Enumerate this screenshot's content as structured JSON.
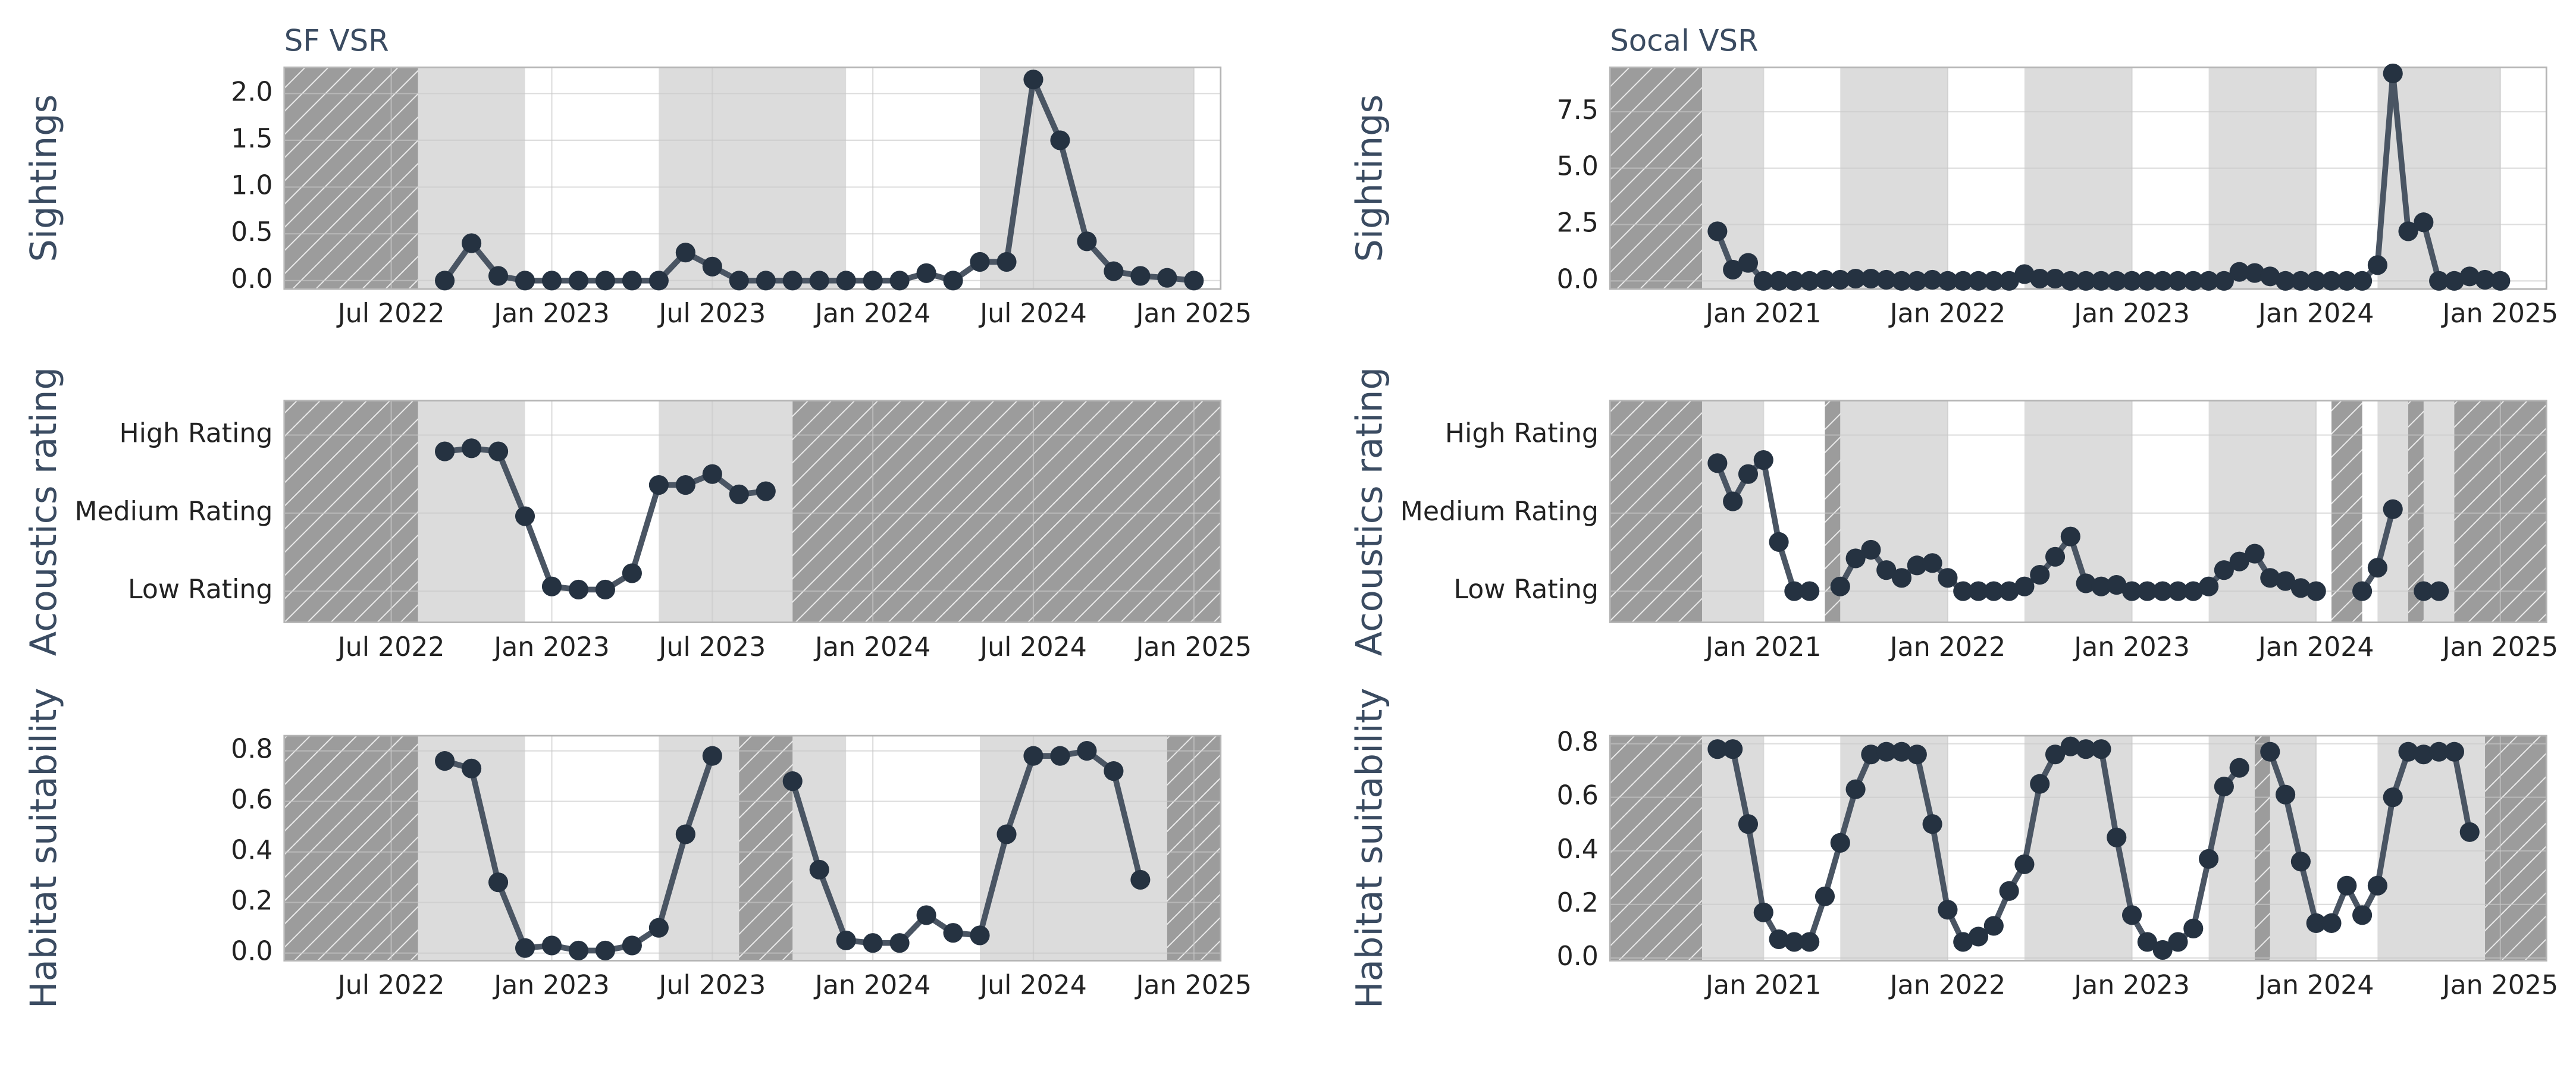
{
  "chart_data": [
    {
      "type": "line",
      "title": "SF VSR",
      "y_label": "Sightings",
      "x": [
        "2022-09",
        "2022-10",
        "2022-11",
        "2022-12",
        "2023-01",
        "2023-02",
        "2023-03",
        "2023-04",
        "2023-05",
        "2023-06",
        "2023-07",
        "2023-08",
        "2023-09",
        "2023-10",
        "2023-11",
        "2023-12",
        "2024-01",
        "2024-02",
        "2024-03",
        "2024-04",
        "2024-05",
        "2024-06",
        "2024-07",
        "2024-08",
        "2024-09",
        "2024-10",
        "2024-11",
        "2024-12",
        "2025-01"
      ],
      "values": [
        0,
        0.4,
        0.05,
        0,
        0,
        0,
        0,
        0,
        0,
        0.3,
        0.15,
        0,
        0,
        0,
        0,
        0,
        0,
        0,
        0.08,
        0,
        0.2,
        0.2,
        2.15,
        1.5,
        0.42,
        0.1,
        0.05,
        0.03,
        0
      ],
      "xlim": [
        "2022-03",
        "2025-02"
      ],
      "xticks": [
        {
          "value": "2022-07",
          "label": "Jul 2022"
        },
        {
          "value": "2023-01",
          "label": "Jan 2023"
        },
        {
          "value": "2023-07",
          "label": "Jul 2023"
        },
        {
          "value": "2024-01",
          "label": "Jan 2024"
        },
        {
          "value": "2024-07",
          "label": "Jul 2024"
        },
        {
          "value": "2025-01",
          "label": "Jan 2025"
        }
      ],
      "ylim": [
        -0.09,
        2.28
      ],
      "yticks": [
        {
          "value": 0,
          "label": "0.0"
        },
        0.5,
        {
          "value": 1,
          "label": "1.0"
        },
        1.5,
        {
          "value": 2,
          "label": "2.0"
        }
      ],
      "shaded_periods": [
        [
          "2022-08",
          "2022-12"
        ],
        [
          "2023-05",
          "2023-12"
        ],
        [
          "2024-05",
          "2025-01"
        ]
      ],
      "hatched_periods": [
        [
          "2022-03",
          "2022-08"
        ]
      ],
      "grid": true,
      "line_color": "#4a5563",
      "marker_color": "#253241"
    },
    {
      "type": "line",
      "y_label": "Acoustics rating",
      "x": [
        "2022-09",
        "2022-10",
        "2022-11",
        "2022-12",
        "2023-01",
        "2023-02",
        "2023-03",
        "2023-04",
        "2023-05",
        "2023-06",
        "2023-07",
        "2023-08",
        "2023-09"
      ],
      "values": [
        2.79,
        2.83,
        2.79,
        1.96,
        1.06,
        1.02,
        1.02,
        1.23,
        2.36,
        2.36,
        2.5,
        2.24,
        2.28
      ],
      "xlim": [
        "2022-03",
        "2025-02"
      ],
      "xticks": [
        {
          "value": "2022-07",
          "label": "Jul 2022"
        },
        {
          "value": "2023-01",
          "label": "Jan 2023"
        },
        {
          "value": "2023-07",
          "label": "Jul 2023"
        },
        {
          "value": "2024-01",
          "label": "Jan 2024"
        },
        {
          "value": "2024-07",
          "label": "Jul 2024"
        },
        {
          "value": "2025-01",
          "label": "Jan 2025"
        }
      ],
      "ylim": [
        0.6,
        3.44
      ],
      "yticks": [
        {
          "value": 1,
          "label": "Low Rating"
        },
        {
          "value": 2,
          "label": "Medium Rating"
        },
        {
          "value": 3,
          "label": "High Rating"
        }
      ],
      "shaded_periods": [
        [
          "2022-08",
          "2022-12"
        ],
        [
          "2023-05",
          "2023-10"
        ]
      ],
      "hatched_periods": [
        [
          "2022-03",
          "2022-08"
        ],
        [
          "2023-10",
          "2025-02"
        ]
      ],
      "grid": true,
      "line_color": "#4a5563",
      "marker_color": "#253241"
    },
    {
      "type": "line",
      "y_label": "Habitat suitability",
      "x": [
        "2022-09",
        "2022-10",
        "2022-11",
        "2022-12",
        "2023-01",
        "2023-02",
        "2023-03",
        "2023-04",
        "2023-05",
        "2023-06",
        "2023-07",
        "2023-08",
        "2023-09",
        "2023-10",
        "2023-11",
        "2023-12",
        "2024-01",
        "2024-02",
        "2024-03",
        "2024-04",
        "2024-05",
        "2024-06",
        "2024-07",
        "2024-08",
        "2024-09",
        "2024-10",
        "2024-11"
      ],
      "values": [
        0.76,
        0.73,
        0.28,
        0.02,
        0.03,
        0.01,
        0.01,
        0.03,
        0.1,
        0.47,
        0.78,
        null,
        null,
        0.68,
        0.33,
        0.05,
        0.04,
        0.04,
        0.15,
        0.08,
        0.07,
        0.47,
        0.78,
        0.78,
        0.8,
        0.72,
        0.29
      ],
      "xlim": [
        "2022-03",
        "2025-02"
      ],
      "xticks": [
        {
          "value": "2022-07",
          "label": "Jul 2022"
        },
        {
          "value": "2023-01",
          "label": "Jan 2023"
        },
        {
          "value": "2023-07",
          "label": "Jul 2023"
        },
        {
          "value": "2024-01",
          "label": "Jan 2024"
        },
        {
          "value": "2024-07",
          "label": "Jul 2024"
        },
        {
          "value": "2025-01",
          "label": "Jan 2025"
        }
      ],
      "ylim": [
        -0.03,
        0.86
      ],
      "yticks": [
        {
          "value": 0,
          "label": "0.0"
        },
        0.2,
        0.4,
        0.6,
        0.8
      ],
      "shaded_periods": [
        [
          "2022-08",
          "2022-12"
        ],
        [
          "2023-05",
          "2023-08"
        ],
        [
          "2023-10",
          "2023-12"
        ],
        [
          "2024-05",
          "2024-12"
        ]
      ],
      "hatched_periods": [
        [
          "2022-03",
          "2022-08"
        ],
        [
          "2023-08",
          "2023-10"
        ],
        [
          "2024-12",
          "2025-02"
        ]
      ],
      "grid": true,
      "line_color": "#4a5563",
      "marker_color": "#253241"
    },
    {
      "type": "line",
      "title": "Socal VSR",
      "y_label": "Sightings",
      "x": [
        "2020-10",
        "2020-11",
        "2020-12",
        "2021-01",
        "2021-02",
        "2021-03",
        "2021-04",
        "2021-05",
        "2021-06",
        "2021-07",
        "2021-08",
        "2021-09",
        "2021-10",
        "2021-11",
        "2021-12",
        "2022-01",
        "2022-02",
        "2022-03",
        "2022-04",
        "2022-05",
        "2022-06",
        "2022-07",
        "2022-08",
        "2022-09",
        "2022-10",
        "2022-11",
        "2022-12",
        "2023-01",
        "2023-02",
        "2023-03",
        "2023-04",
        "2023-05",
        "2023-06",
        "2023-07",
        "2023-08",
        "2023-09",
        "2023-10",
        "2023-11",
        "2023-12",
        "2024-01",
        "2024-02",
        "2024-03",
        "2024-04",
        "2024-05",
        "2024-06",
        "2024-07",
        "2024-08",
        "2024-09",
        "2024-10",
        "2024-11",
        "2024-12",
        "2025-01"
      ],
      "values": [
        2.2,
        0.5,
        0.8,
        0,
        0,
        0,
        0,
        0.05,
        0.05,
        0.1,
        0.1,
        0.05,
        0,
        0,
        0.05,
        0,
        0,
        0,
        0,
        0,
        0.3,
        0.1,
        0.1,
        0,
        0,
        0,
        0,
        0,
        0,
        0,
        0,
        0,
        0,
        0,
        0.4,
        0.35,
        0.2,
        0,
        0,
        0,
        0,
        0,
        0,
        0.7,
        9.2,
        2.2,
        2.6,
        0,
        0,
        0.2,
        0.05,
        0
      ],
      "xlim": [
        "2020-03",
        "2025-04"
      ],
      "xticks": [
        {
          "value": "2021-01",
          "label": "Jan 2021"
        },
        {
          "value": "2022-01",
          "label": "Jan 2022"
        },
        {
          "value": "2023-01",
          "label": "Jan 2023"
        },
        {
          "value": "2024-01",
          "label": "Jan 2024"
        },
        {
          "value": "2025-01",
          "label": "Jan 2025"
        }
      ],
      "ylim": [
        -0.36,
        9.47
      ],
      "yticks": [
        {
          "value": 0,
          "label": "0.0"
        },
        2.5,
        {
          "value": 5,
          "label": "5.0"
        },
        7.5
      ],
      "shaded_periods": [
        [
          "2020-09",
          "2021-01"
        ],
        [
          "2021-06",
          "2022-01"
        ],
        [
          "2022-06",
          "2023-01"
        ],
        [
          "2023-06",
          "2024-01"
        ],
        [
          "2024-05",
          "2025-01"
        ]
      ],
      "hatched_periods": [
        [
          "2020-03",
          "2020-09"
        ]
      ],
      "grid": true,
      "line_color": "#4a5563",
      "marker_color": "#253241"
    },
    {
      "type": "line",
      "y_label": "Acoustics rating",
      "x": [
        "2020-10",
        "2020-11",
        "2020-12",
        "2021-01",
        "2021-02",
        "2021-03",
        "2021-04",
        "2021-05",
        "2021-06",
        "2021-07",
        "2021-08",
        "2021-09",
        "2021-10",
        "2021-11",
        "2021-12",
        "2022-01",
        "2022-02",
        "2022-03",
        "2022-04",
        "2022-05",
        "2022-06",
        "2022-07",
        "2022-08",
        "2022-09",
        "2022-10",
        "2022-11",
        "2022-12",
        "2023-01",
        "2023-02",
        "2023-03",
        "2023-04",
        "2023-05",
        "2023-06",
        "2023-07",
        "2023-08",
        "2023-09",
        "2023-10",
        "2023-11",
        "2023-12",
        "2024-01",
        "2024-02",
        "2024-03",
        "2024-04",
        "2024-05",
        "2024-06",
        "2024-07",
        "2024-08",
        "2024-09"
      ],
      "values": [
        2.64,
        2.15,
        2.5,
        2.68,
        1.63,
        1.0,
        1.0,
        null,
        1.06,
        1.42,
        1.53,
        1.27,
        1.17,
        1.33,
        1.36,
        1.17,
        1.0,
        1.0,
        1.0,
        1.0,
        1.06,
        1.21,
        1.44,
        1.7,
        1.1,
        1.06,
        1.08,
        1.0,
        1.0,
        1.0,
        1.0,
        1.0,
        1.06,
        1.27,
        1.38,
        1.48,
        1.17,
        1.13,
        1.04,
        1.0,
        null,
        null,
        1.0,
        1.3,
        2.05,
        null,
        1.0,
        1.0
      ],
      "xlim": [
        "2020-03",
        "2025-04"
      ],
      "xticks": [
        {
          "value": "2021-01",
          "label": "Jan 2021"
        },
        {
          "value": "2022-01",
          "label": "Jan 2022"
        },
        {
          "value": "2023-01",
          "label": "Jan 2023"
        },
        {
          "value": "2024-01",
          "label": "Jan 2024"
        },
        {
          "value": "2025-01",
          "label": "Jan 2025"
        }
      ],
      "ylim": [
        0.6,
        3.44
      ],
      "yticks": [
        {
          "value": 1,
          "label": "Low Rating"
        },
        {
          "value": 2,
          "label": "Medium Rating"
        },
        {
          "value": 3,
          "label": "High Rating"
        }
      ],
      "shaded_periods": [
        [
          "2020-09",
          "2021-01"
        ],
        [
          "2021-06",
          "2022-01"
        ],
        [
          "2022-06",
          "2023-01"
        ],
        [
          "2023-06",
          "2024-01"
        ],
        [
          "2024-05",
          "2024-10"
        ]
      ],
      "hatched_periods": [
        [
          "2020-03",
          "2020-09"
        ],
        [
          "2021-05",
          "2021-06"
        ],
        [
          "2024-02",
          "2024-04"
        ],
        [
          "2024-07",
          "2024-08"
        ],
        [
          "2024-10",
          "2025-04"
        ]
      ],
      "grid": true,
      "line_color": "#4a5563",
      "marker_color": "#253241"
    },
    {
      "type": "line",
      "y_label": "Habitat suitability",
      "x": [
        "2020-10",
        "2020-11",
        "2020-12",
        "2021-01",
        "2021-02",
        "2021-03",
        "2021-04",
        "2021-05",
        "2021-06",
        "2021-07",
        "2021-08",
        "2021-09",
        "2021-10",
        "2021-11",
        "2021-12",
        "2022-01",
        "2022-02",
        "2022-03",
        "2022-04",
        "2022-05",
        "2022-06",
        "2022-07",
        "2022-08",
        "2022-09",
        "2022-10",
        "2022-11",
        "2022-12",
        "2023-01",
        "2023-02",
        "2023-03",
        "2023-04",
        "2023-05",
        "2023-06",
        "2023-07",
        "2023-08",
        "2023-09",
        "2023-10",
        "2023-11",
        "2023-12",
        "2024-01",
        "2024-02",
        "2024-03",
        "2024-04",
        "2024-05",
        "2024-06",
        "2024-07",
        "2024-08",
        "2024-09",
        "2024-10",
        "2024-11"
      ],
      "values": [
        0.78,
        0.78,
        0.5,
        0.17,
        0.07,
        0.06,
        0.06,
        0.23,
        0.43,
        0.63,
        0.76,
        0.77,
        0.77,
        0.76,
        0.5,
        0.18,
        0.06,
        0.08,
        0.12,
        0.25,
        0.35,
        0.65,
        0.76,
        0.79,
        0.78,
        0.78,
        0.45,
        0.16,
        0.06,
        0.03,
        0.06,
        0.11,
        0.37,
        0.64,
        0.71,
        null,
        0.77,
        0.61,
        0.36,
        0.13,
        0.13,
        0.27,
        0.16,
        0.27,
        0.6,
        0.77,
        0.76,
        0.77,
        0.77,
        0.47
      ],
      "xlim": [
        "2020-03",
        "2025-04"
      ],
      "xticks": [
        {
          "value": "2021-01",
          "label": "Jan 2021"
        },
        {
          "value": "2022-01",
          "label": "Jan 2022"
        },
        {
          "value": "2023-01",
          "label": "Jan 2023"
        },
        {
          "value": "2024-01",
          "label": "Jan 2024"
        },
        {
          "value": "2025-01",
          "label": "Jan 2025"
        }
      ],
      "ylim": [
        -0.01,
        0.83
      ],
      "yticks": [
        {
          "value": 0,
          "label": "0.0"
        },
        0.2,
        0.4,
        0.6,
        0.8
      ],
      "shaded_periods": [
        [
          "2020-09",
          "2021-01"
        ],
        [
          "2021-06",
          "2022-01"
        ],
        [
          "2022-06",
          "2023-01"
        ],
        [
          "2023-06",
          "2023-09"
        ],
        [
          "2023-10",
          "2024-01"
        ],
        [
          "2024-05",
          "2024-12"
        ]
      ],
      "hatched_periods": [
        [
          "2020-03",
          "2020-09"
        ],
        [
          "2023-09",
          "2023-10"
        ],
        [
          "2024-12",
          "2025-04"
        ]
      ],
      "grid": true,
      "line_color": "#4a5563",
      "marker_color": "#253241"
    }
  ]
}
